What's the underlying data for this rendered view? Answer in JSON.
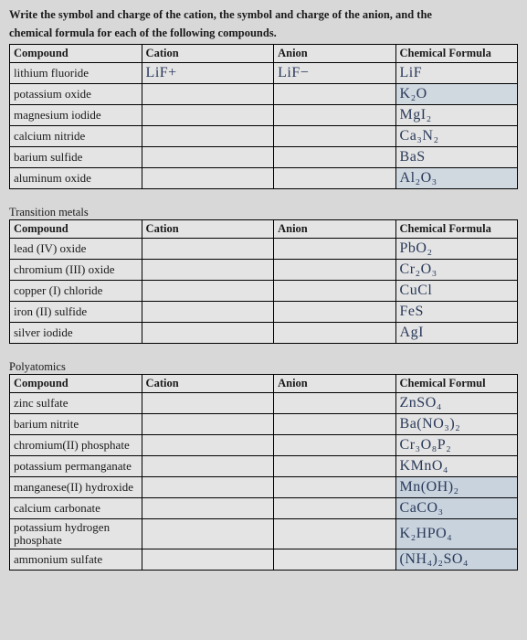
{
  "instruction_line1": "Write the symbol and charge of the cation, the symbol and charge of the anion, and the",
  "instruction_line2": "chemical formula for each of the following compounds.",
  "headers": {
    "compound": "Compound",
    "cation": "Cation",
    "anion": "Anion",
    "formula": "Chemical Formula",
    "formula_cut": "Chemical Formul"
  },
  "section_titles": {
    "transition": "Transition metals",
    "polyatomics": "Polyatomics"
  },
  "table1": {
    "rows": [
      {
        "compound": "lithium fluoride",
        "cation_hw": "LiF+",
        "anion_hw": "LiF−",
        "formula_hw": "LiF"
      },
      {
        "compound": "potassium oxide",
        "cation_hw": "",
        "anion_hw": "",
        "formula_hw": "K₂O"
      },
      {
        "compound": "magnesium iodide",
        "cation_hw": "",
        "anion_hw": "",
        "formula_hw": "MgI₂"
      },
      {
        "compound": "calcium nitride",
        "cation_hw": "",
        "anion_hw": "",
        "formula_hw": "Ca₃N₂"
      },
      {
        "compound": "barium sulfide",
        "cation_hw": "",
        "anion_hw": "",
        "formula_hw": "BaS"
      },
      {
        "compound": "aluminum oxide",
        "cation_hw": "",
        "anion_hw": "",
        "formula_hw": "Al₂O₃"
      }
    ]
  },
  "table2": {
    "rows": [
      {
        "compound": "lead (IV) oxide",
        "cation_hw": "",
        "anion_hw": "",
        "formula_hw": "PbO₂"
      },
      {
        "compound": "chromium (III) oxide",
        "cation_hw": "",
        "anion_hw": "",
        "formula_hw": "Cr₂O₃"
      },
      {
        "compound": "copper (I) chloride",
        "cation_hw": "",
        "anion_hw": "",
        "formula_hw": "CuCl"
      },
      {
        "compound": "iron (II) sulfide",
        "cation_hw": "",
        "anion_hw": "",
        "formula_hw": "FeS"
      },
      {
        "compound": "silver iodide",
        "cation_hw": "",
        "anion_hw": "",
        "formula_hw": "AgI"
      }
    ]
  },
  "table3": {
    "rows": [
      {
        "compound": "zinc sulfate",
        "cation_hw": "",
        "anion_hw": "",
        "formula_hw": "ZnSO₄"
      },
      {
        "compound": "barium nitrite",
        "cation_hw": "",
        "anion_hw": "",
        "formula_hw": "Ba(NO₃)₂"
      },
      {
        "compound": "chromium(II) phosphate",
        "cation_hw": "",
        "anion_hw": "",
        "formula_hw": "Cr₃O₈P₂"
      },
      {
        "compound": "potassium permanganate",
        "cation_hw": "",
        "anion_hw": "",
        "formula_hw": "KMnO₄"
      },
      {
        "compound": "manganese(II) hydroxide",
        "cation_hw": "",
        "anion_hw": "",
        "formula_hw": "Mn(OH)₂"
      },
      {
        "compound": "calcium carbonate",
        "cation_hw": "",
        "anion_hw": "",
        "formula_hw": "CaCO₃"
      },
      {
        "compound": "potassium hydrogen phosphate",
        "cation_hw": "",
        "anion_hw": "",
        "formula_hw": "K₂HPO₄"
      },
      {
        "compound": "ammonium sulfate",
        "cation_hw": "",
        "anion_hw": "",
        "formula_hw": "(NH₄)₂SO₄"
      }
    ]
  }
}
